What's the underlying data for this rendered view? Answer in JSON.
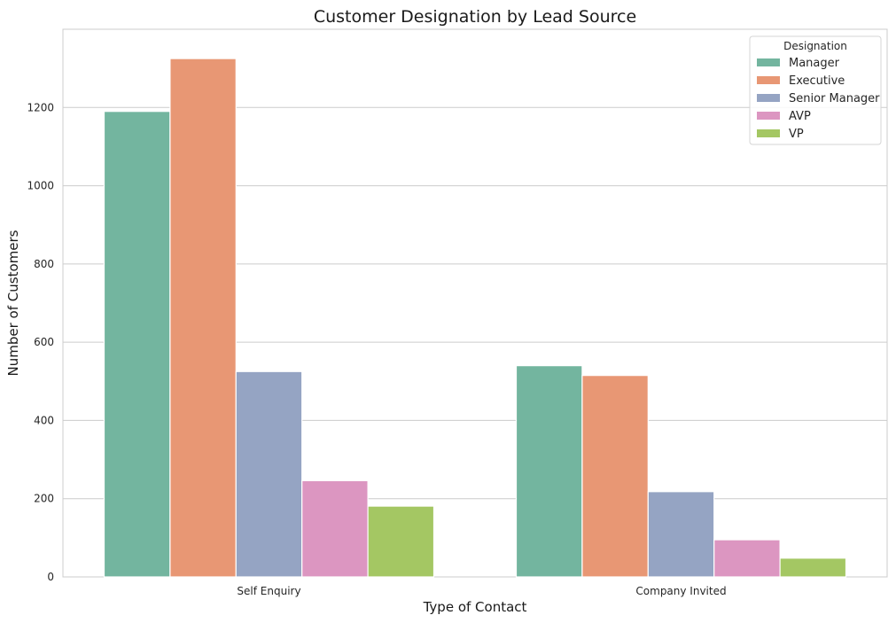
{
  "chart_data": {
    "type": "bar",
    "title": "Customer Designation by Lead Source",
    "xlabel": "Type of Contact",
    "ylabel": "Number of Customers",
    "categories": [
      "Self Enquiry",
      "Company Invited"
    ],
    "ylim": [
      0,
      1400
    ],
    "yticks": [
      0,
      200,
      400,
      600,
      800,
      1000,
      1200
    ],
    "grid": true,
    "legend": {
      "title": "Designation",
      "placement": "top-right"
    },
    "series": [
      {
        "name": "Manager",
        "color": "#73b59f",
        "values": [
          1190,
          540
        ]
      },
      {
        "name": "Executive",
        "color": "#e89774",
        "values": [
          1325,
          515
        ]
      },
      {
        "name": "Senior Manager",
        "color": "#95a4c3",
        "values": [
          525,
          218
        ]
      },
      {
        "name": "AVP",
        "color": "#dc96c1",
        "values": [
          246,
          95
        ]
      },
      {
        "name": "VP",
        "color": "#a4c763",
        "values": [
          181,
          48
        ]
      }
    ]
  }
}
